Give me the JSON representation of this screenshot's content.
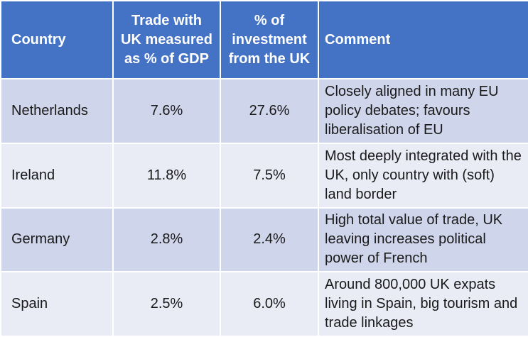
{
  "headers": {
    "country": "Country",
    "trade": "Trade with UK measured as % of GDP",
    "investment": "% of investment from the UK",
    "comment": "Comment"
  },
  "rows": [
    {
      "country": "Netherlands",
      "trade": "7.6%",
      "investment": "27.6%",
      "comment": "Closely aligned in many EU policy debates; favours liberalisation of EU"
    },
    {
      "country": "Ireland",
      "trade": "11.8%",
      "investment": "7.5%",
      "comment": "Most deeply integrated with the UK, only country with (soft) land border"
    },
    {
      "country": "Germany",
      "trade": "2.8%",
      "investment": "2.4%",
      "comment": "High total value of trade, UK leaving increases political power of French"
    },
    {
      "country": "Spain",
      "trade": "2.5%",
      "investment": "6.0%",
      "comment": "Around 800,000 UK expats living in Spain, big tourism and trade linkages"
    }
  ],
  "colors": {
    "header": "#4472c4",
    "row_dark": "#cfd5ea",
    "row_light": "#e9ebf5"
  }
}
